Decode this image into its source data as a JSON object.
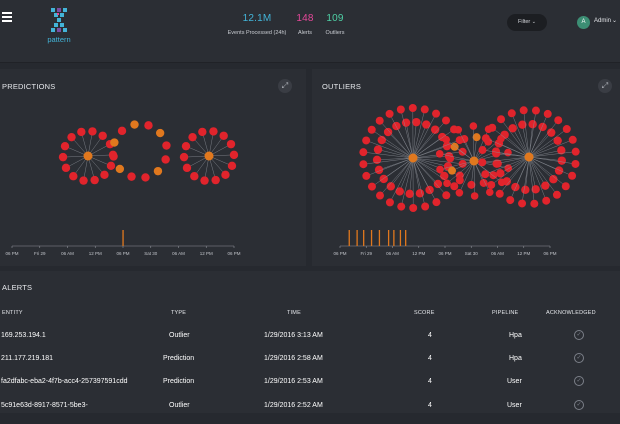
{
  "colors": {
    "node_red": "#e1242c",
    "node_orange": "#e0781e",
    "accent_blue": "#43b4d8",
    "accent_pink": "#e6489a",
    "accent_green": "#4fd1a6",
    "avatar_green": "#3c8e74"
  },
  "header": {
    "logo_text": "pattern",
    "stats": [
      {
        "value": "12.1M",
        "label": "Events Processed (24h)",
        "color": "#43b4d8"
      },
      {
        "value": "148",
        "label": "Alerts",
        "color": "#e6489a"
      },
      {
        "value": "109",
        "label": "Outliers",
        "color": "#4fd1a6"
      }
    ],
    "filter_label": "Filter",
    "user": {
      "initial": "A",
      "name": "Admin"
    }
  },
  "predictions": {
    "title": "PREDICTIONS",
    "axis_ticks": [
      "06 PM",
      "Fri 29",
      "06 AM",
      "12 PM",
      "06 PM",
      "Sat 30",
      "06 AM",
      "12 PM",
      "06 PM"
    ],
    "events": [
      4
    ]
  },
  "outliers": {
    "title": "OUTLIERS",
    "axis_ticks": [
      "06 PM",
      "Fri 29",
      "06 AM",
      "12 PM",
      "06 PM",
      "Sat 30",
      "06 AM",
      "12 PM",
      "06 PM"
    ],
    "events": [
      0.15,
      0.45,
      0.7,
      1.0,
      1.3,
      1.65,
      1.85,
      2.1,
      2.3
    ]
  },
  "alerts": {
    "title": "ALERTS",
    "columns": {
      "entity": "ENTITY",
      "type": "TYPE",
      "time": "TIME",
      "score": "SCORE",
      "pipeline": "PIPELINE",
      "ack": "ACKNOWLEDGED"
    },
    "rows": [
      {
        "entity": "169.253.194.1",
        "type": "Outlier",
        "time": "1/29/2016 3:13 AM",
        "score": "4",
        "pipeline": "Hpa"
      },
      {
        "entity": "211.177.219.181",
        "type": "Prediction",
        "time": "1/29/2016 2:58 AM",
        "score": "4",
        "pipeline": "Hpa"
      },
      {
        "entity": "fa2dfabc-eba2-4f7b-acc4-257397591cdd",
        "type": "Prediction",
        "time": "1/29/2016 2:53 AM",
        "score": "4",
        "pipeline": "User"
      },
      {
        "entity": "5c91e63d-8917-8571-5be3-",
        "type": "Outlier",
        "time": "1/29/2016 2:52 AM",
        "score": "4",
        "pipeline": "User"
      }
    ]
  }
}
